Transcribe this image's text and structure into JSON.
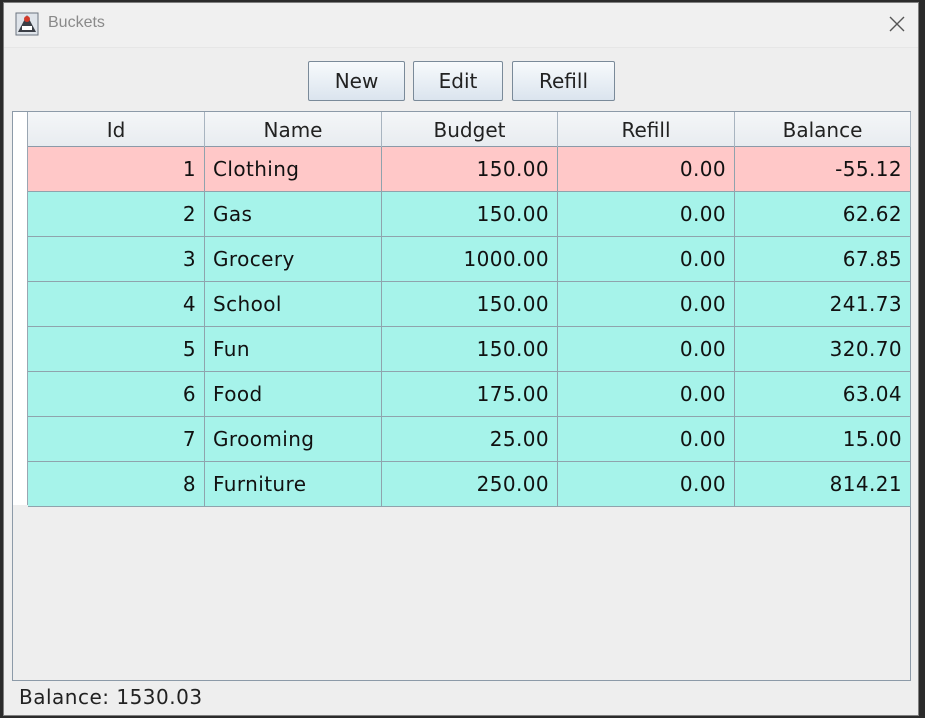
{
  "window": {
    "title": "Buckets",
    "icon": "app-icon"
  },
  "toolbar": {
    "new_label": "New",
    "edit_label": "Edit",
    "refill_label": "Refill"
  },
  "table": {
    "columns": [
      "Id",
      "Name",
      "Budget",
      "Refill",
      "Balance"
    ],
    "rows": [
      {
        "id": "1",
        "name": "Clothing",
        "budget": "150.00",
        "refill": "0.00",
        "balance": "-55.12",
        "status": "negative"
      },
      {
        "id": "2",
        "name": "Gas",
        "budget": "150.00",
        "refill": "0.00",
        "balance": "62.62",
        "status": "positive"
      },
      {
        "id": "3",
        "name": "Grocery",
        "budget": "1000.00",
        "refill": "0.00",
        "balance": "67.85",
        "status": "positive"
      },
      {
        "id": "4",
        "name": "School",
        "budget": "150.00",
        "refill": "0.00",
        "balance": "241.73",
        "status": "positive"
      },
      {
        "id": "5",
        "name": "Fun",
        "budget": "150.00",
        "refill": "0.00",
        "balance": "320.70",
        "status": "positive"
      },
      {
        "id": "6",
        "name": "Food",
        "budget": "175.00",
        "refill": "0.00",
        "balance": "63.04",
        "status": "positive"
      },
      {
        "id": "7",
        "name": "Grooming",
        "budget": "25.00",
        "refill": "0.00",
        "balance": "15.00",
        "status": "positive"
      },
      {
        "id": "8",
        "name": "Furniture",
        "budget": "250.00",
        "refill": "0.00",
        "balance": "814.21",
        "status": "positive"
      }
    ]
  },
  "footer": {
    "balance_text": "Balance: 1530.03"
  },
  "colors": {
    "negative_row": "#ffc8c8",
    "positive_row": "#a6f3ea"
  }
}
